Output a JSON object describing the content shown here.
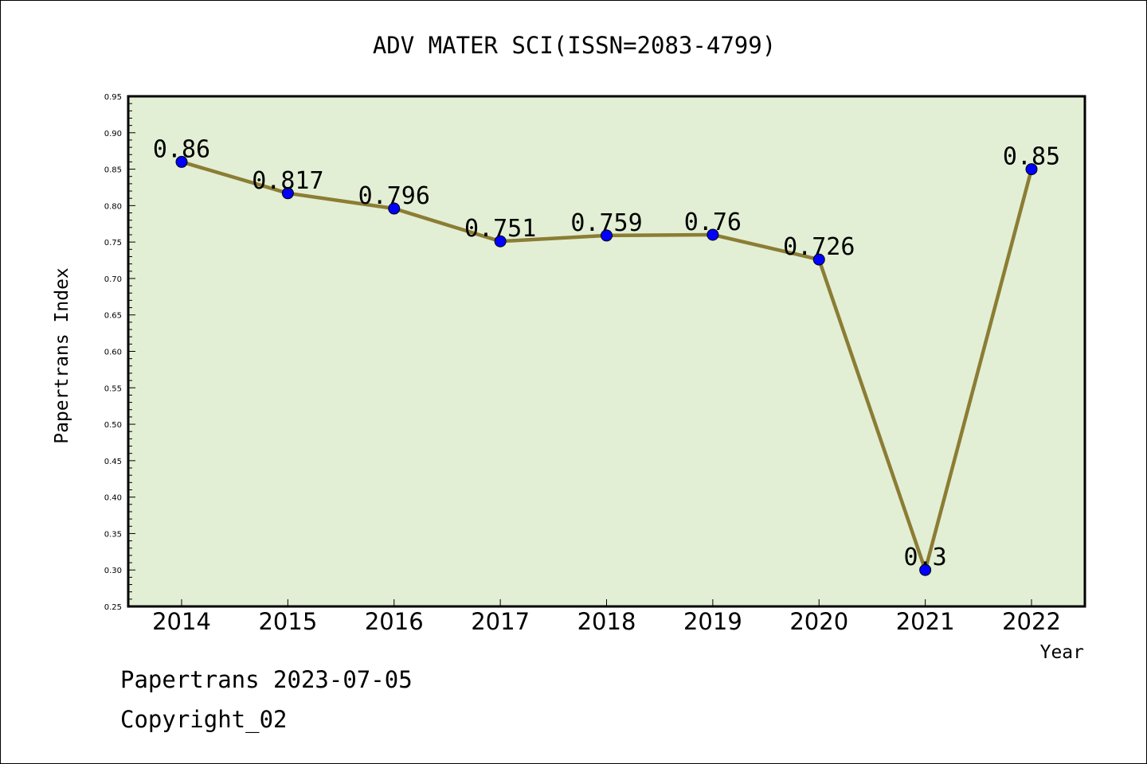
{
  "chart_data": {
    "type": "line",
    "title": "ADV MATER SCI(ISSN=2083-4799)",
    "xlabel": "Year",
    "ylabel": "Papertrans Index",
    "categories": [
      "2014",
      "2015",
      "2016",
      "2017",
      "2018",
      "2019",
      "2020",
      "2021",
      "2022"
    ],
    "series": [
      {
        "values": [
          0.86,
          0.817,
          0.796,
          0.751,
          0.759,
          0.76,
          0.726,
          0.3,
          0.85
        ],
        "labels": [
          "0.86",
          "0.817",
          "0.796",
          "0.751",
          "0.759",
          "0.76",
          "0.726",
          "0.3",
          "0.85"
        ]
      }
    ],
    "ylim": [
      0.25,
      0.95
    ],
    "yticks": [
      "0.25",
      "0.30",
      "0.35",
      "0.40",
      "0.45",
      "0.50",
      "0.55",
      "0.60",
      "0.65",
      "0.70",
      "0.75",
      "0.80",
      "0.85",
      "0.90",
      "0.95"
    ],
    "grid": false,
    "colors": {
      "plot_background": "#e2efd5",
      "line": "#8b7d34",
      "marker": "#0000ff"
    }
  },
  "footer": {
    "date_text": "Papertrans 2023-07-05",
    "copyright_text": "Copyright_02"
  }
}
